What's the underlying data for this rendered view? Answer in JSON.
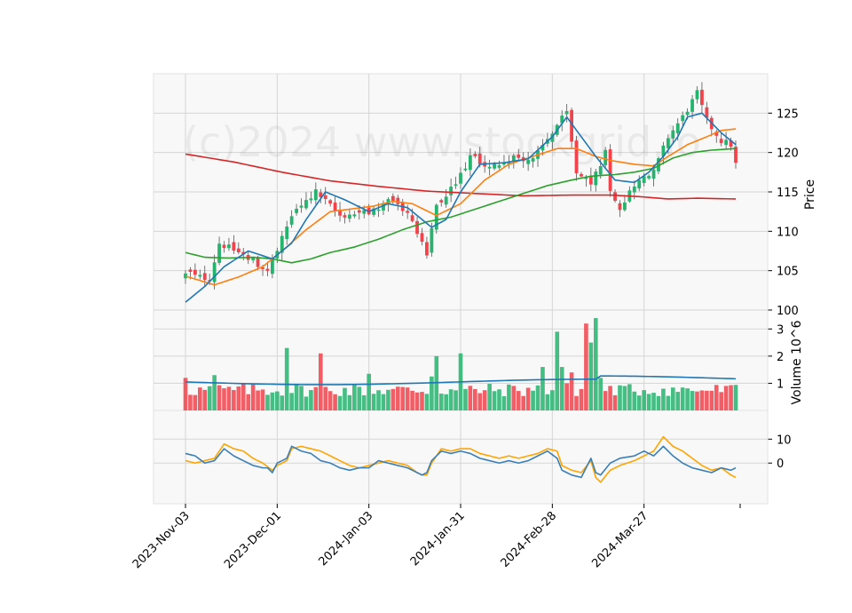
{
  "chart_data": {
    "type": "candlestick",
    "watermark": "(c)2024 www.stockgrid.io",
    "colors": {
      "up": "#26b36e",
      "down": "#f0434b",
      "ma_short": "#1f77b4",
      "ma_mid": "#ff7f0e",
      "ma_long": "#2ca02c",
      "ma_200": "#d62728",
      "volume_avg": "#1f77b4",
      "osc_line": "#3b7fb5",
      "osc_signal": "#ffa500",
      "panel_bg": "#f8f8f8",
      "grid": "#d5d5d5"
    },
    "x_tick_labels": [
      "2023-Nov-03",
      "2023-Dec-01",
      "2024-Jan-03",
      "2024-Jan-31",
      "2024-Feb-28",
      "2024-Mar-27"
    ],
    "x_tick_indices": [
      0,
      19,
      38,
      57,
      76,
      95
    ],
    "n_days": 115,
    "price_panel": {
      "ylabel": "Price",
      "ylim": [
        100,
        130
      ],
      "yticks": [
        100,
        105,
        110,
        115,
        120,
        125
      ],
      "close_anchors": [
        [
          0,
          104.5
        ],
        [
          5,
          104.0
        ],
        [
          7,
          108.5
        ],
        [
          12,
          107.0
        ],
        [
          17,
          105.0
        ],
        [
          19,
          107.5
        ],
        [
          22,
          112.0
        ],
        [
          27,
          115.0
        ],
        [
          32,
          112.0
        ],
        [
          38,
          112.5
        ],
        [
          43,
          114.0
        ],
        [
          47,
          111.5
        ],
        [
          50,
          107.0
        ],
        [
          52,
          113.0
        ],
        [
          56,
          116.0
        ],
        [
          59,
          119.5
        ],
        [
          63,
          118.0
        ],
        [
          68,
          119.5
        ],
        [
          72,
          119.0
        ],
        [
          77,
          123.5
        ],
        [
          79,
          125.0
        ],
        [
          81,
          117.5
        ],
        [
          84,
          116.0
        ],
        [
          87,
          120.0
        ],
        [
          88,
          115.5
        ],
        [
          90,
          113.0
        ],
        [
          93,
          116.0
        ],
        [
          97,
          117.5
        ],
        [
          100,
          122.0
        ],
        [
          103,
          124.5
        ],
        [
          106,
          127.5
        ],
        [
          108,
          124.0
        ],
        [
          111,
          121.5
        ],
        [
          113,
          121.0
        ],
        [
          114,
          118.5
        ]
      ],
      "ma_short_anchors": [
        [
          0,
          101.0
        ],
        [
          4,
          103.0
        ],
        [
          8,
          105.5
        ],
        [
          13,
          107.5
        ],
        [
          18,
          106.5
        ],
        [
          22,
          108.5
        ],
        [
          25,
          111.5
        ],
        [
          29,
          115.0
        ],
        [
          33,
          114.0
        ],
        [
          38,
          112.5
        ],
        [
          42,
          113.5
        ],
        [
          46,
          113.0
        ],
        [
          51,
          110.5
        ],
        [
          54,
          111.5
        ],
        [
          57,
          115.0
        ],
        [
          61,
          118.5
        ],
        [
          66,
          118.7
        ],
        [
          71,
          119.2
        ],
        [
          76,
          122.0
        ],
        [
          79,
          124.5
        ],
        [
          82,
          122.0
        ],
        [
          85,
          119.5
        ],
        [
          89,
          116.5
        ],
        [
          93,
          116.2
        ],
        [
          96,
          117.5
        ],
        [
          99,
          119.5
        ],
        [
          102,
          122.0
        ],
        [
          104,
          124.5
        ],
        [
          107,
          125.0
        ],
        [
          111,
          122.5
        ],
        [
          114,
          121.0
        ]
      ],
      "ma_mid_anchors": [
        [
          0,
          104.3
        ],
        [
          6,
          103.2
        ],
        [
          11,
          104.2
        ],
        [
          16,
          105.5
        ],
        [
          20,
          107.5
        ],
        [
          25,
          110.2
        ],
        [
          30,
          112.5
        ],
        [
          34,
          112.8
        ],
        [
          39,
          113.2
        ],
        [
          43,
          113.8
        ],
        [
          47,
          113.5
        ],
        [
          52,
          112.0
        ],
        [
          57,
          113.5
        ],
        [
          62,
          116.5
        ],
        [
          67,
          118.5
        ],
        [
          72,
          119.5
        ],
        [
          77,
          120.5
        ],
        [
          81,
          120.5
        ],
        [
          85,
          119.5
        ],
        [
          88,
          119.0
        ],
        [
          93,
          118.5
        ],
        [
          97,
          118.3
        ],
        [
          100,
          119.5
        ],
        [
          104,
          121.0
        ],
        [
          108,
          122.0
        ],
        [
          111,
          122.8
        ],
        [
          114,
          123.0
        ]
      ],
      "ma_long_anchors": [
        [
          0,
          107.3
        ],
        [
          4,
          106.7
        ],
        [
          9,
          106.6
        ],
        [
          14,
          106.7
        ],
        [
          18,
          106.5
        ],
        [
          22,
          106.0
        ],
        [
          26,
          106.5
        ],
        [
          30,
          107.3
        ],
        [
          35,
          108.0
        ],
        [
          40,
          109.0
        ],
        [
          45,
          110.2
        ],
        [
          50,
          111.2
        ],
        [
          55,
          111.8
        ],
        [
          60,
          112.8
        ],
        [
          65,
          113.8
        ],
        [
          70,
          114.8
        ],
        [
          75,
          115.8
        ],
        [
          80,
          116.5
        ],
        [
          84,
          117.0
        ],
        [
          89,
          117.2
        ],
        [
          93,
          117.5
        ],
        [
          97,
          118.0
        ],
        [
          101,
          119.3
        ],
        [
          105,
          120.0
        ],
        [
          109,
          120.3
        ],
        [
          114,
          120.5
        ]
      ],
      "ma_200_anchors": [
        [
          0,
          119.8
        ],
        [
          10,
          118.8
        ],
        [
          20,
          117.5
        ],
        [
          30,
          116.4
        ],
        [
          40,
          115.7
        ],
        [
          50,
          115.1
        ],
        [
          60,
          114.8
        ],
        [
          70,
          114.5
        ],
        [
          80,
          114.6
        ],
        [
          88,
          114.6
        ],
        [
          94,
          114.4
        ],
        [
          100,
          114.1
        ],
        [
          106,
          114.2
        ],
        [
          114,
          114.1
        ]
      ]
    },
    "volume_panel": {
      "ylabel": "Volume  10^6",
      "ylim": [
        0,
        3.5
      ],
      "yticks": [
        1,
        2,
        3
      ],
      "average_level": 1.05,
      "spikes": [
        [
          0,
          1.2
        ],
        [
          6,
          1.3
        ],
        [
          21,
          2.3
        ],
        [
          28,
          2.1
        ],
        [
          38,
          1.35
        ],
        [
          51,
          1.25
        ],
        [
          51.5,
          2.0
        ],
        [
          57,
          2.1
        ],
        [
          74,
          1.6
        ],
        [
          77,
          2.9
        ],
        [
          78,
          1.6
        ],
        [
          79,
          1.0
        ],
        [
          80,
          1.4
        ],
        [
          83,
          3.2
        ],
        [
          84,
          2.5
        ],
        [
          85,
          3.4
        ],
        [
          86,
          1.2
        ]
      ]
    },
    "oscillator_panel": {
      "ylim": [
        -17,
        22
      ],
      "yticks": [
        0,
        10
      ],
      "line_anchors": [
        [
          0,
          4
        ],
        [
          2,
          3
        ],
        [
          4,
          0
        ],
        [
          6,
          1
        ],
        [
          8,
          6
        ],
        [
          10,
          3
        ],
        [
          12,
          1
        ],
        [
          14,
          -1
        ],
        [
          16,
          -2
        ],
        [
          17,
          -2
        ],
        [
          18,
          -4
        ],
        [
          19,
          0
        ],
        [
          21,
          2
        ],
        [
          22,
          7
        ],
        [
          24,
          5
        ],
        [
          26,
          4
        ],
        [
          28,
          1
        ],
        [
          30,
          0
        ],
        [
          32,
          -2
        ],
        [
          34,
          -3
        ],
        [
          36,
          -2
        ],
        [
          38,
          -2
        ],
        [
          40,
          1
        ],
        [
          42,
          0
        ],
        [
          44,
          -1
        ],
        [
          46,
          -2
        ],
        [
          48,
          -4
        ],
        [
          49,
          -5
        ],
        [
          50,
          -4
        ],
        [
          51,
          1
        ],
        [
          53,
          5
        ],
        [
          55,
          4
        ],
        [
          57,
          5
        ],
        [
          59,
          4
        ],
        [
          61,
          2
        ],
        [
          63,
          1
        ],
        [
          65,
          0
        ],
        [
          67,
          1
        ],
        [
          69,
          0
        ],
        [
          71,
          1
        ],
        [
          73,
          3
        ],
        [
          75,
          5
        ],
        [
          77,
          2
        ],
        [
          78,
          -3
        ],
        [
          80,
          -5
        ],
        [
          82,
          -6
        ],
        [
          84,
          2
        ],
        [
          85,
          -4
        ],
        [
          86,
          -5
        ],
        [
          88,
          0
        ],
        [
          90,
          2
        ],
        [
          93,
          3
        ],
        [
          95,
          5
        ],
        [
          97,
          3
        ],
        [
          99,
          7
        ],
        [
          101,
          3
        ],
        [
          103,
          0
        ],
        [
          105,
          -2
        ],
        [
          107,
          -3
        ],
        [
          109,
          -4
        ],
        [
          111,
          -2
        ],
        [
          113,
          -3
        ],
        [
          114,
          -2
        ]
      ],
      "signal_anchors": [
        [
          0,
          1
        ],
        [
          2,
          0
        ],
        [
          4,
          1
        ],
        [
          6,
          2
        ],
        [
          8,
          8
        ],
        [
          10,
          6
        ],
        [
          12,
          5
        ],
        [
          14,
          2
        ],
        [
          16,
          0
        ],
        [
          18,
          -3
        ],
        [
          19,
          -1
        ],
        [
          21,
          1
        ],
        [
          22,
          6
        ],
        [
          24,
          7
        ],
        [
          26,
          6
        ],
        [
          28,
          5
        ],
        [
          30,
          3
        ],
        [
          32,
          1
        ],
        [
          34,
          -1
        ],
        [
          36,
          -2
        ],
        [
          38,
          -1
        ],
        [
          40,
          0
        ],
        [
          42,
          1
        ],
        [
          44,
          0
        ],
        [
          46,
          -1
        ],
        [
          48,
          -4
        ],
        [
          49,
          -5
        ],
        [
          50,
          -5
        ],
        [
          51,
          0
        ],
        [
          53,
          6
        ],
        [
          55,
          5
        ],
        [
          57,
          6
        ],
        [
          59,
          6
        ],
        [
          61,
          4
        ],
        [
          63,
          3
        ],
        [
          65,
          2
        ],
        [
          67,
          3
        ],
        [
          69,
          2
        ],
        [
          71,
          3
        ],
        [
          73,
          4
        ],
        [
          75,
          6
        ],
        [
          77,
          5
        ],
        [
          78,
          -1
        ],
        [
          80,
          -3
        ],
        [
          82,
          -4
        ],
        [
          84,
          1
        ],
        [
          85,
          -6
        ],
        [
          86,
          -8
        ],
        [
          88,
          -3
        ],
        [
          90,
          -1
        ],
        [
          93,
          1
        ],
        [
          95,
          3
        ],
        [
          97,
          5
        ],
        [
          99,
          11
        ],
        [
          101,
          7
        ],
        [
          103,
          5
        ],
        [
          105,
          2
        ],
        [
          107,
          -1
        ],
        [
          109,
          -3
        ],
        [
          111,
          -2
        ],
        [
          113,
          -5
        ],
        [
          114,
          -6
        ]
      ]
    }
  }
}
